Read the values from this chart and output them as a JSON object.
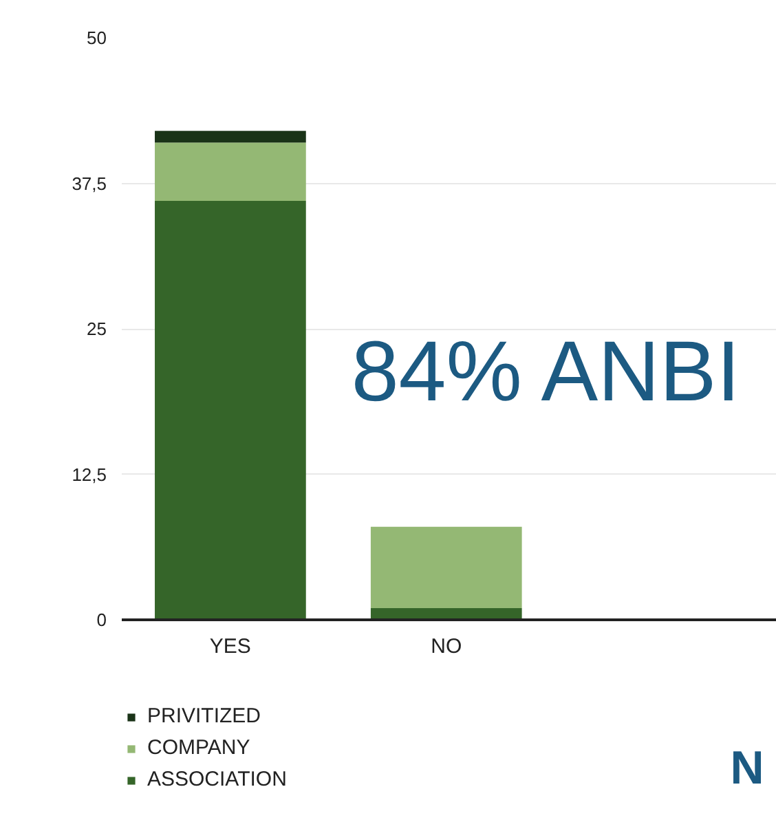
{
  "chart_data": {
    "type": "bar",
    "stacked": true,
    "categories": [
      "YES",
      "NO"
    ],
    "series": [
      {
        "name": "ASSOCIATION",
        "color": "#356529",
        "values": [
          36,
          1
        ]
      },
      {
        "name": "COMPANY",
        "color": "#94b874",
        "values": [
          5,
          7
        ]
      },
      {
        "name": "PRIVITIZED",
        "color": "#1a3318",
        "values": [
          1,
          0
        ]
      }
    ],
    "ylim": [
      0,
      50
    ],
    "yticks": [
      0,
      {
        "value": 12.5,
        "label": "12,5"
      },
      25,
      {
        "value": 37.5,
        "label": "37,5"
      },
      50
    ],
    "grid": "y",
    "legend": "bottom",
    "annotations": [
      "84% ANBI",
      "N"
    ]
  }
}
